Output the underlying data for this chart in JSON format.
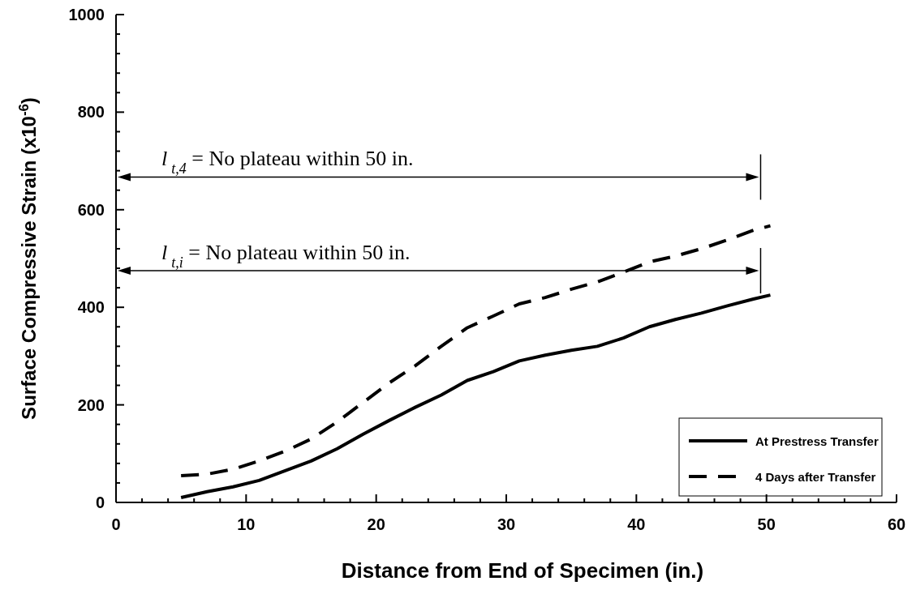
{
  "chart_data": {
    "type": "line",
    "xlabel": "Distance from End of Specimen (in.)",
    "ylabel": "Surface Compressive Strain (x10$^{-6}$)",
    "xlim": [
      0,
      60
    ],
    "ylim": [
      0,
      1000
    ],
    "xticks": [
      0,
      {
        "value": 2,
        "label": null
      },
      {
        "value": 4,
        "label": null
      },
      {
        "value": 6,
        "label": null
      },
      {
        "value": 8,
        "label": null
      },
      10,
      {
        "value": 12,
        "label": null
      },
      {
        "value": 14,
        "label": null
      },
      {
        "value": 16,
        "label": null
      },
      {
        "value": 18,
        "label": null
      },
      20,
      {
        "value": 22,
        "label": null
      },
      {
        "value": 24,
        "label": null
      },
      {
        "value": 26,
        "label": null
      },
      {
        "value": 28,
        "label": null
      },
      30,
      {
        "value": 32,
        "label": null
      },
      {
        "value": 34,
        "label": null
      },
      {
        "value": 36,
        "label": null
      },
      {
        "value": 38,
        "label": null
      },
      40,
      {
        "value": 42,
        "label": null
      },
      {
        "value": 44,
        "label": null
      },
      {
        "value": 46,
        "label": null
      },
      {
        "value": 48,
        "label": null
      },
      50,
      {
        "value": 52,
        "label": null
      },
      {
        "value": 54,
        "label": null
      },
      {
        "value": 56,
        "label": null
      },
      {
        "value": 58,
        "label": null
      },
      60
    ],
    "yticks": [
      0,
      {
        "value": 40,
        "label": null
      },
      {
        "value": 80,
        "label": null
      },
      {
        "value": 120,
        "label": null
      },
      {
        "value": 160,
        "label": null
      },
      200,
      {
        "value": 240,
        "label": null
      },
      {
        "value": 280,
        "label": null
      },
      {
        "value": 320,
        "label": null
      },
      {
        "value": 360,
        "label": null
      },
      400,
      {
        "value": 440,
        "label": null
      },
      {
        "value": 480,
        "label": null
      },
      {
        "value": 520,
        "label": null
      },
      {
        "value": 560,
        "label": null
      },
      600,
      {
        "value": 640,
        "label": null
      },
      {
        "value": 680,
        "label": null
      },
      {
        "value": 720,
        "label": null
      },
      {
        "value": 760,
        "label": null
      },
      800,
      {
        "value": 840,
        "label": null
      },
      {
        "value": 880,
        "label": null
      },
      {
        "value": 920,
        "label": null
      },
      {
        "value": 960,
        "label": null
      },
      1000
    ],
    "grid": false,
    "legend": "bottom right",
    "marker": "none",
    "x": [
      5,
      7,
      9,
      11,
      13,
      15,
      17,
      19,
      21,
      23,
      25,
      27,
      29,
      31,
      33,
      35,
      37,
      39,
      41,
      43,
      45,
      47,
      49,
      50.3
    ],
    "series": [
      {
        "name": "At Prestress Transfer",
        "color": "#000000",
        "line_style": "solid",
        "values": [
          10,
          22,
          32,
          45,
          65,
          85,
          110,
          140,
          168,
          195,
          220,
          250,
          268,
          290,
          302,
          312,
          320,
          337,
          360,
          375,
          388,
          403,
          417,
          425
        ]
      },
      {
        "name": "4 Days after Transfer",
        "color": "#000000",
        "line_style": "dashed",
        "values": [
          55,
          58,
          68,
          85,
          105,
          130,
          165,
          205,
          245,
          280,
          320,
          358,
          382,
          407,
          420,
          437,
          452,
          472,
          493,
          505,
          520,
          538,
          558,
          567
        ]
      }
    ],
    "ref_lines": [
      {
        "axis": "y",
        "value": 667,
        "label": "l$_{t,4}$ = No plateau within 50 in."
      },
      {
        "axis": "y",
        "value": 475,
        "label": "l$_{t,i}$ = No plateau within 50 in."
      }
    ]
  }
}
